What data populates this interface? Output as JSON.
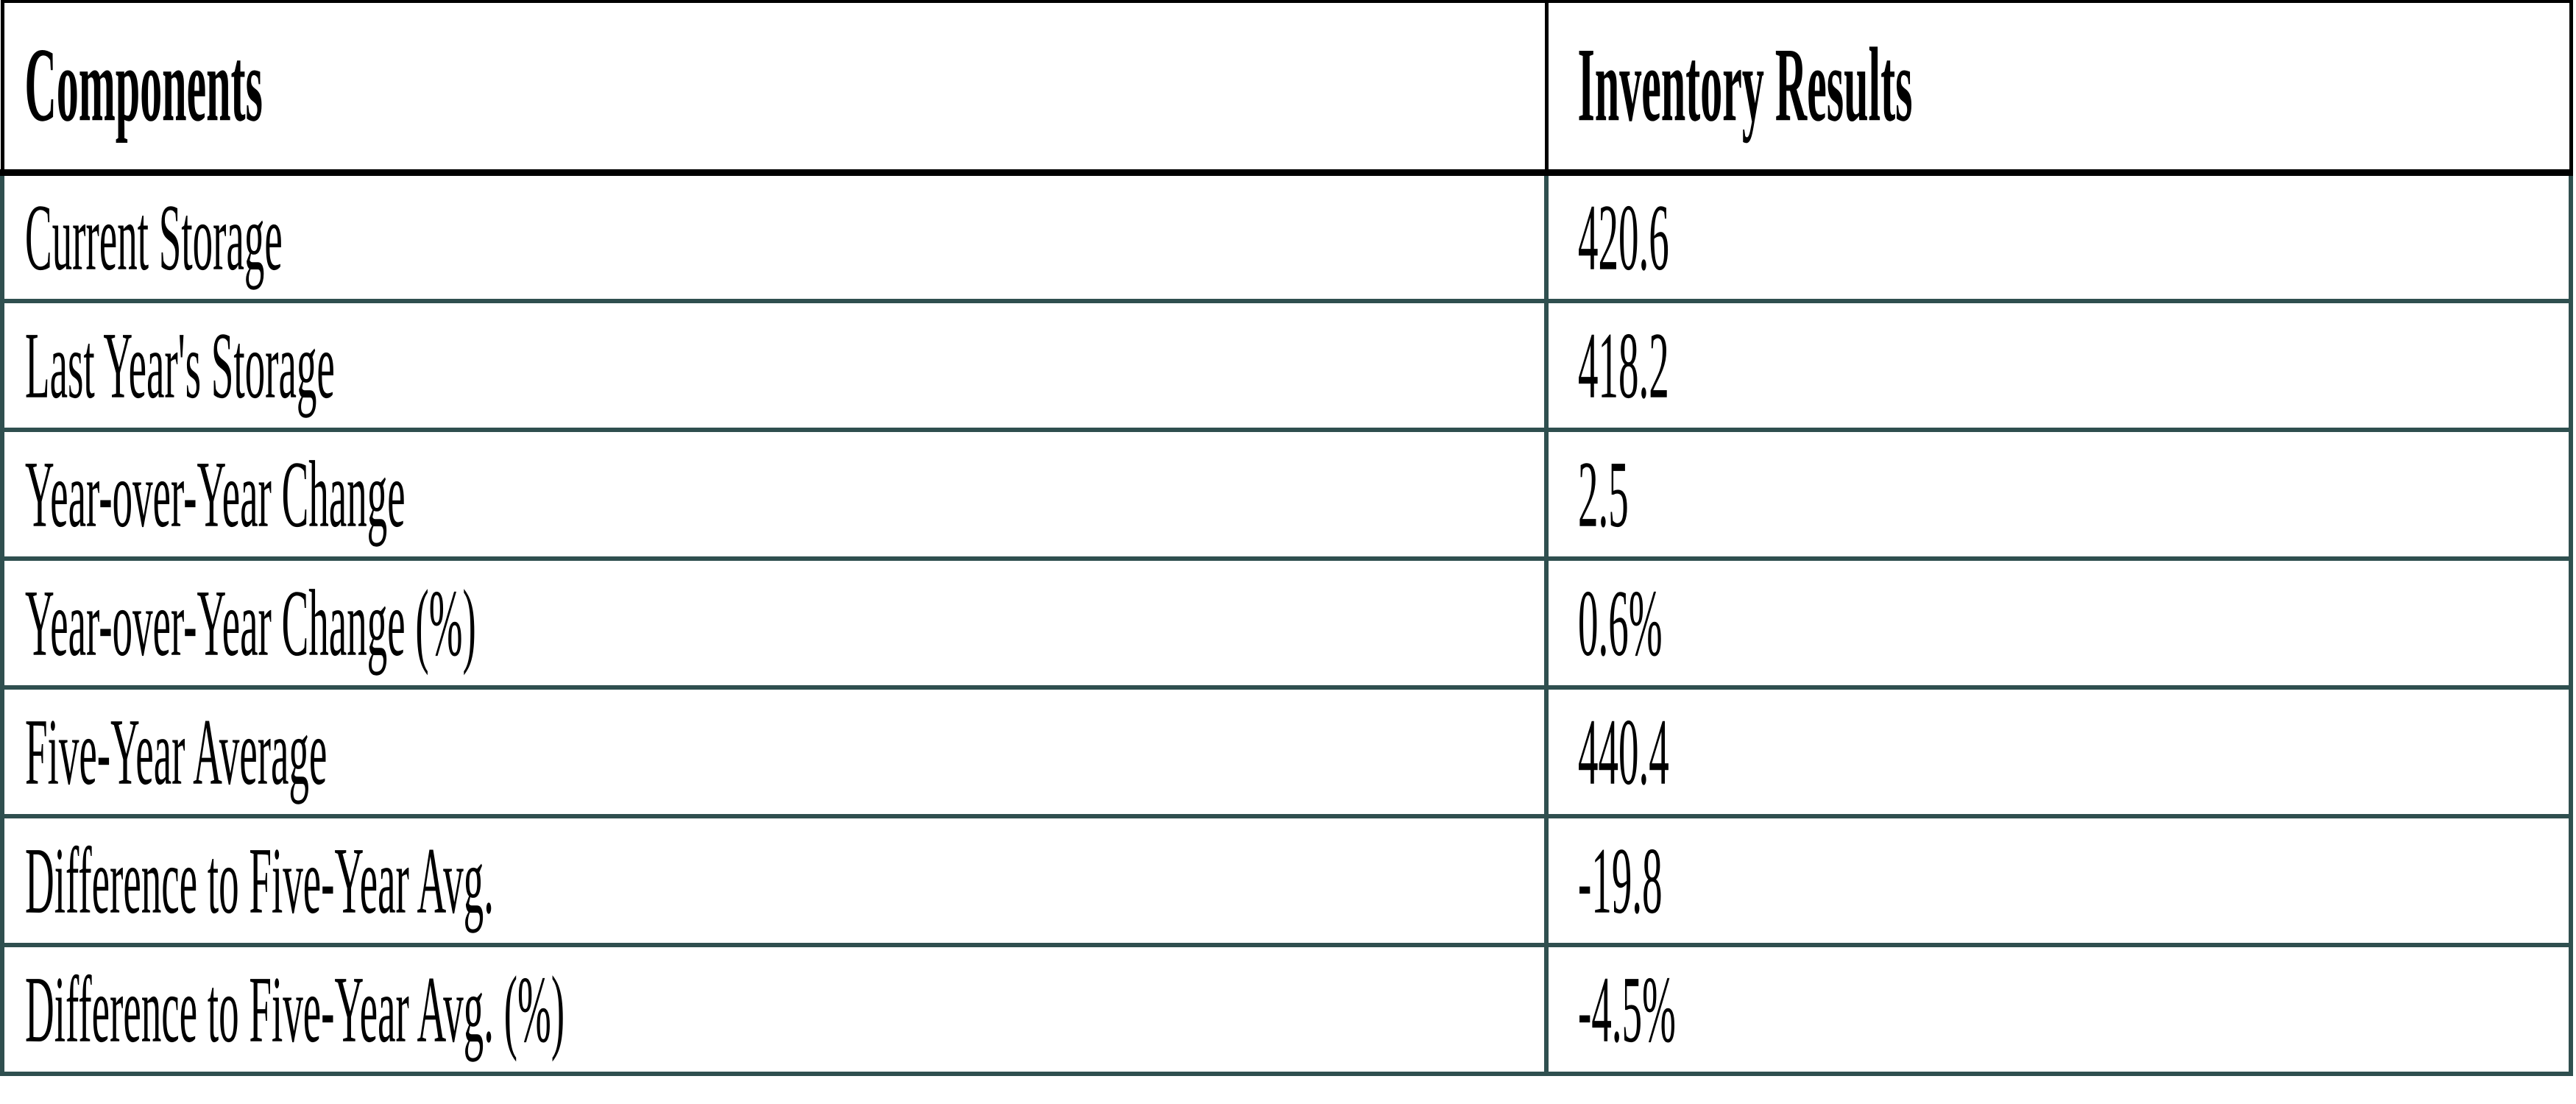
{
  "colors": {
    "background": "#FFFFFF",
    "text": "#000000",
    "header_border": "#000000",
    "body_border": "#2F4F4F"
  },
  "table": {
    "headers": [
      "Components",
      "Inventory Results"
    ],
    "rows": [
      {
        "label": "Current Storage",
        "value": "420.6"
      },
      {
        "label": "Last Year's Storage",
        "value": "418.2"
      },
      {
        "label": "Year-over-Year Change",
        "value": "2.5"
      },
      {
        "label": "Year-over-Year Change (%)",
        "value": "0.6%"
      },
      {
        "label": "Five-Year Average",
        "value": "440.4"
      },
      {
        "label": "Difference to Five-Year Avg.",
        "value": "-19.8"
      },
      {
        "label": "Difference to Five-Year Avg. (%)",
        "value": "-4.5%"
      }
    ]
  },
  "chart_data": {
    "type": "table",
    "columns": [
      "Components",
      "Inventory Results"
    ],
    "rows": [
      [
        "Current Storage",
        "420.6"
      ],
      [
        "Last Year's Storage",
        "418.2"
      ],
      [
        "Year-over-Year Change",
        "2.5"
      ],
      [
        "Year-over-Year Change (%)",
        "0.6%"
      ],
      [
        "Five-Year Average",
        "440.4"
      ],
      [
        "Difference to Five-Year Avg.",
        "-19.8"
      ],
      [
        "Difference to Five-Year Avg. (%)",
        "-4.5%"
      ]
    ]
  }
}
